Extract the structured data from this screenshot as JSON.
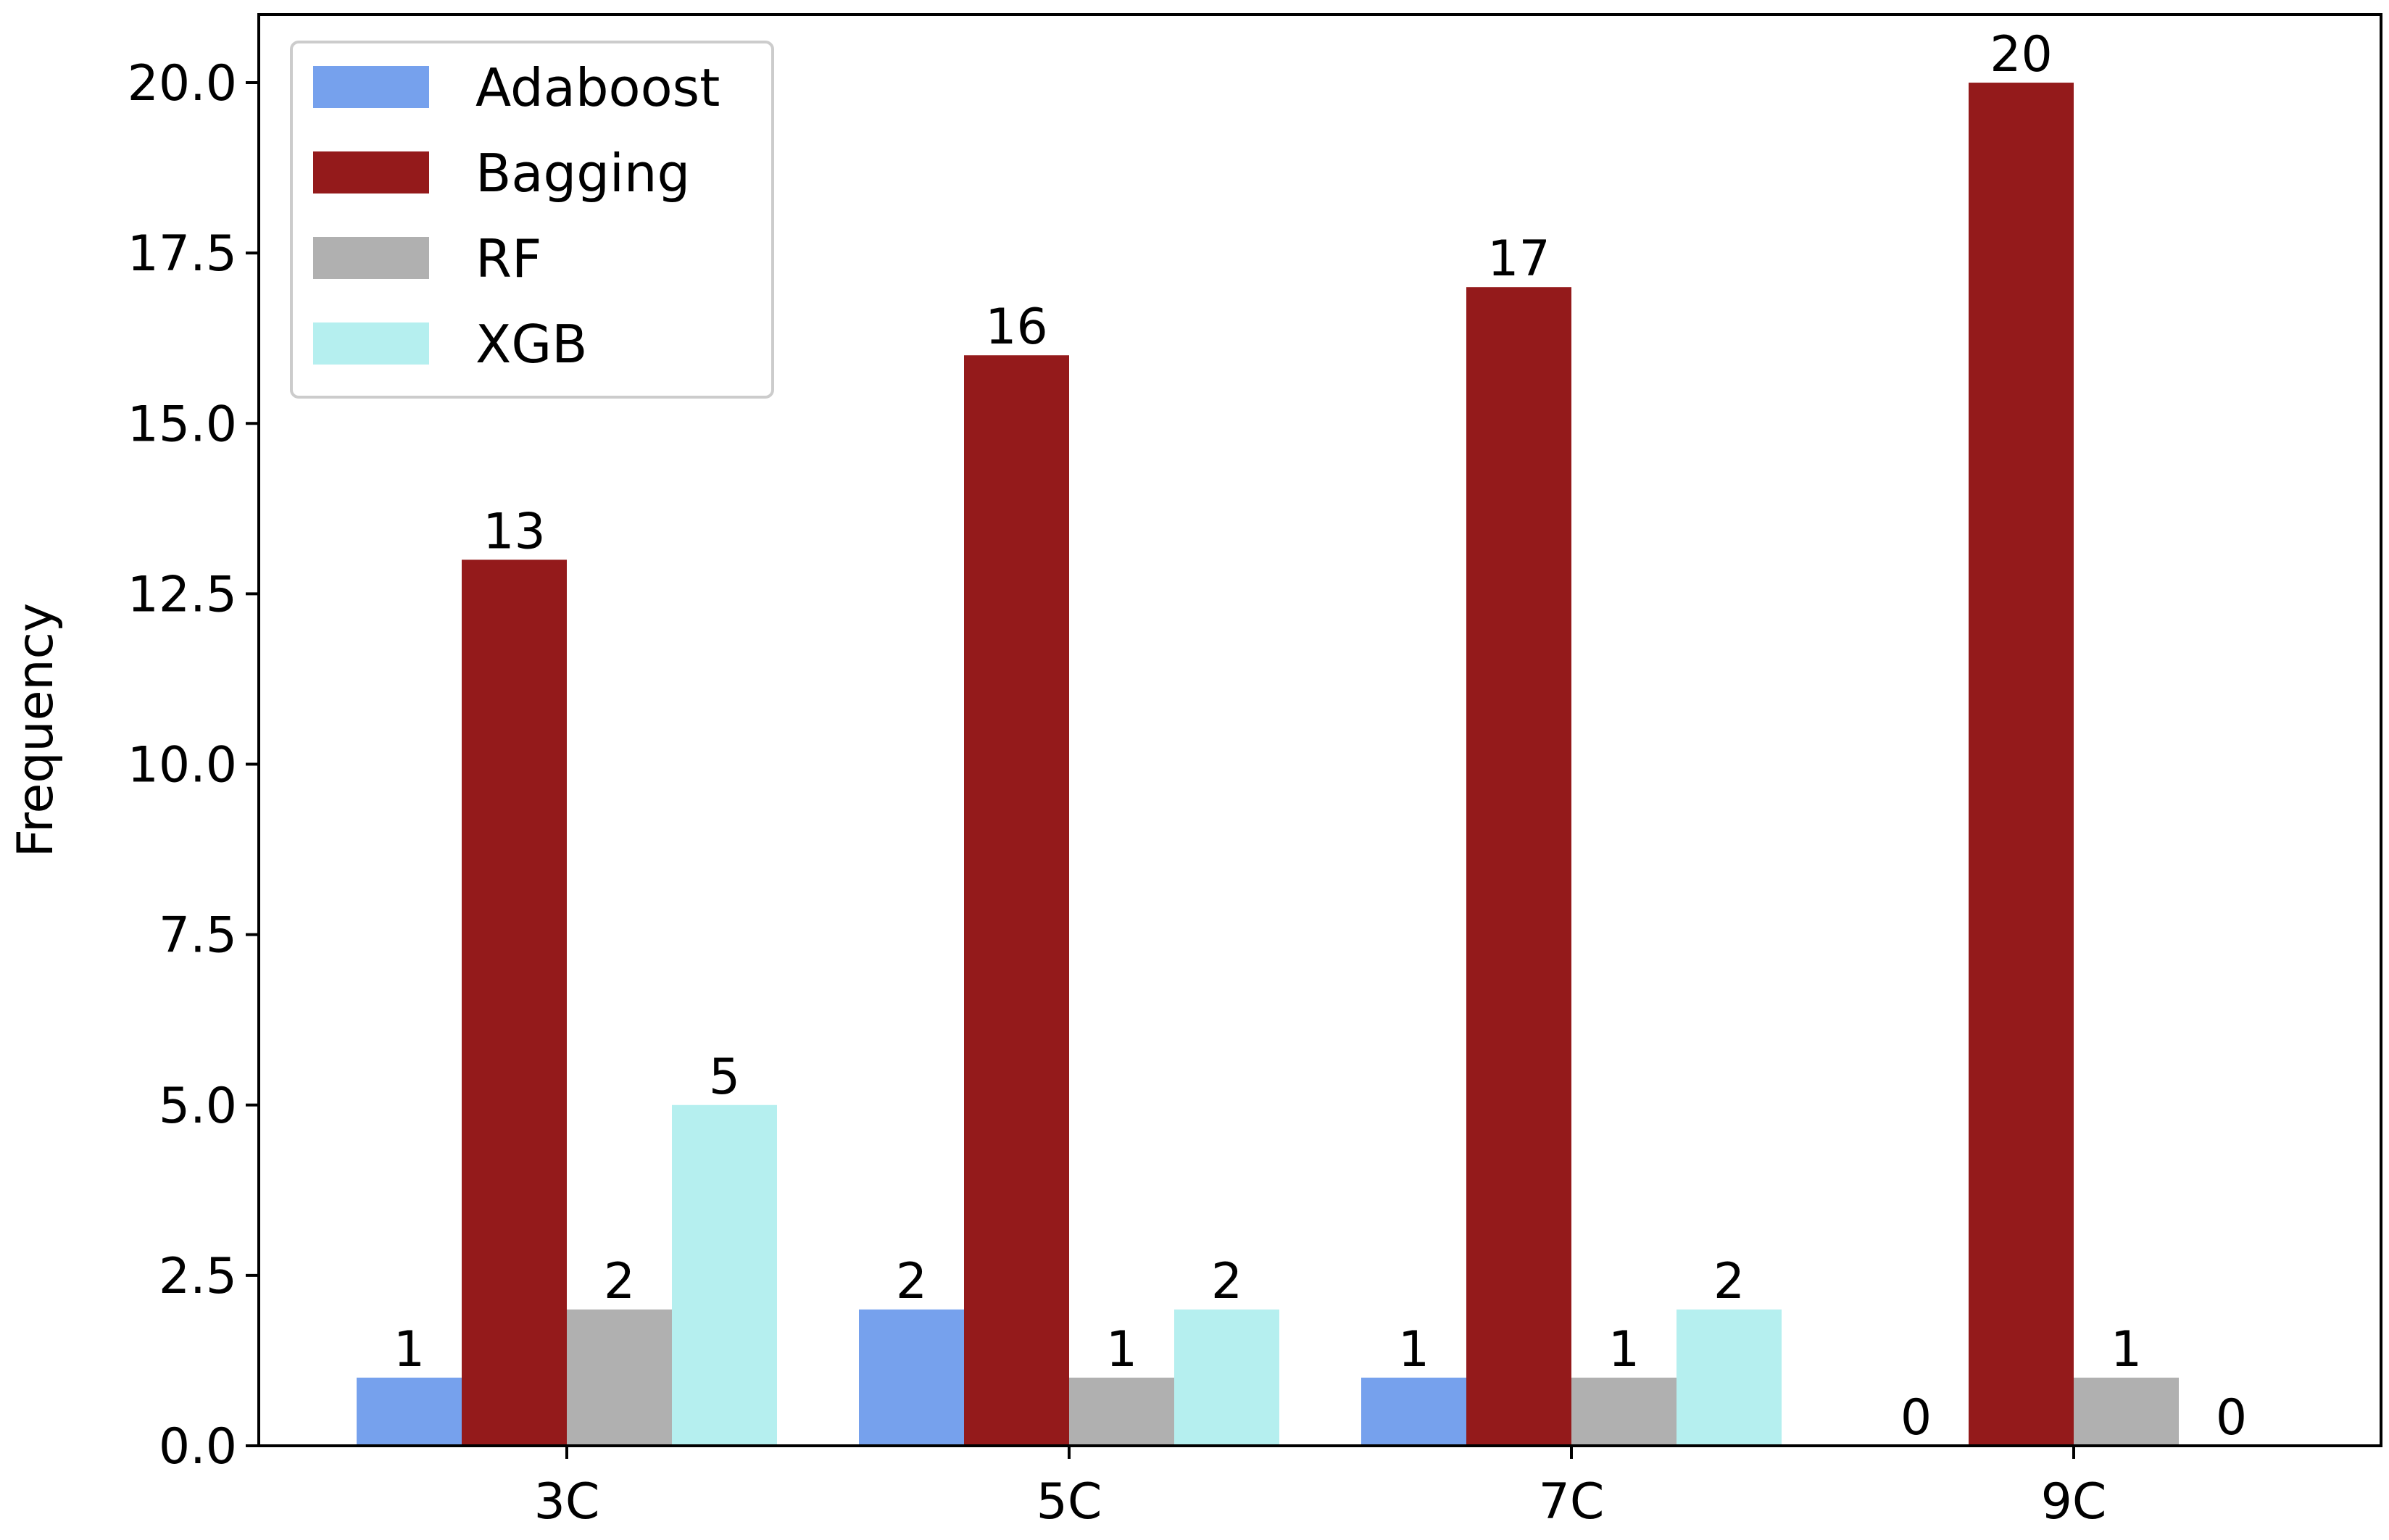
{
  "chart_data": {
    "type": "bar",
    "title": "",
    "xlabel": "",
    "ylabel": "Frequency",
    "categories": [
      "3C",
      "5C",
      "7C",
      "9C"
    ],
    "series": [
      {
        "name": "Adaboost",
        "values": [
          1,
          2,
          1,
          0
        ],
        "color": "#76a1ed"
      },
      {
        "name": "Bagging",
        "values": [
          13,
          16,
          17,
          20
        ],
        "color": "#941a1b"
      },
      {
        "name": "RF",
        "values": [
          2,
          1,
          1,
          1
        ],
        "color": "#b0b0b0"
      },
      {
        "name": "XGB",
        "values": [
          5,
          2,
          2,
          0
        ],
        "color": "#b5efef"
      }
    ],
    "ylim": [
      0,
      21
    ],
    "yticks": [
      "0.0",
      "2.5",
      "5.0",
      "7.5",
      "10.0",
      "12.5",
      "15.0",
      "17.5",
      "20.0"
    ],
    "grid": false,
    "legend": "top-left",
    "data_labels": true
  }
}
